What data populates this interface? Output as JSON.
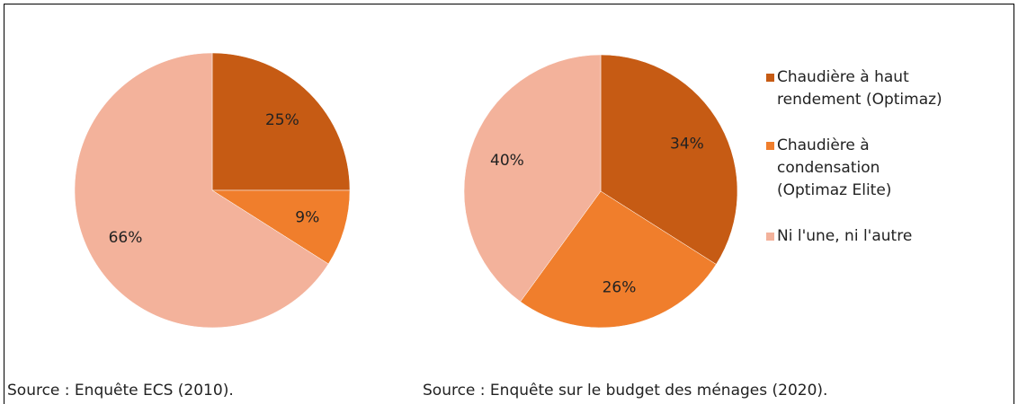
{
  "chart_data": [
    {
      "type": "pie",
      "source": "Source : Enquête ECS (2010).",
      "categories": [
        "Chaudière à haut rendement (Optimaz)",
        "Chaudière à condensation (Optimaz Elite)",
        "Ni l'une, ni l'autre"
      ],
      "values": [
        25,
        9,
        66
      ],
      "value_labels": [
        "25%",
        "9%",
        "66%"
      ],
      "colors": [
        "#c65b14",
        "#f07e2c",
        "#f3b29b"
      ]
    },
    {
      "type": "pie",
      "source": "Source : Enquête sur le budget des ménages (2020).",
      "categories": [
        "Chaudière à haut rendement (Optimaz)",
        "Chaudière à condensation (Optimaz Elite)",
        "Ni l'une, ni l'autre"
      ],
      "values": [
        34,
        26,
        40
      ],
      "value_labels": [
        "34%",
        "26%",
        "40%"
      ],
      "colors": [
        "#c65b14",
        "#f07e2c",
        "#f3b29b"
      ]
    }
  ]
}
